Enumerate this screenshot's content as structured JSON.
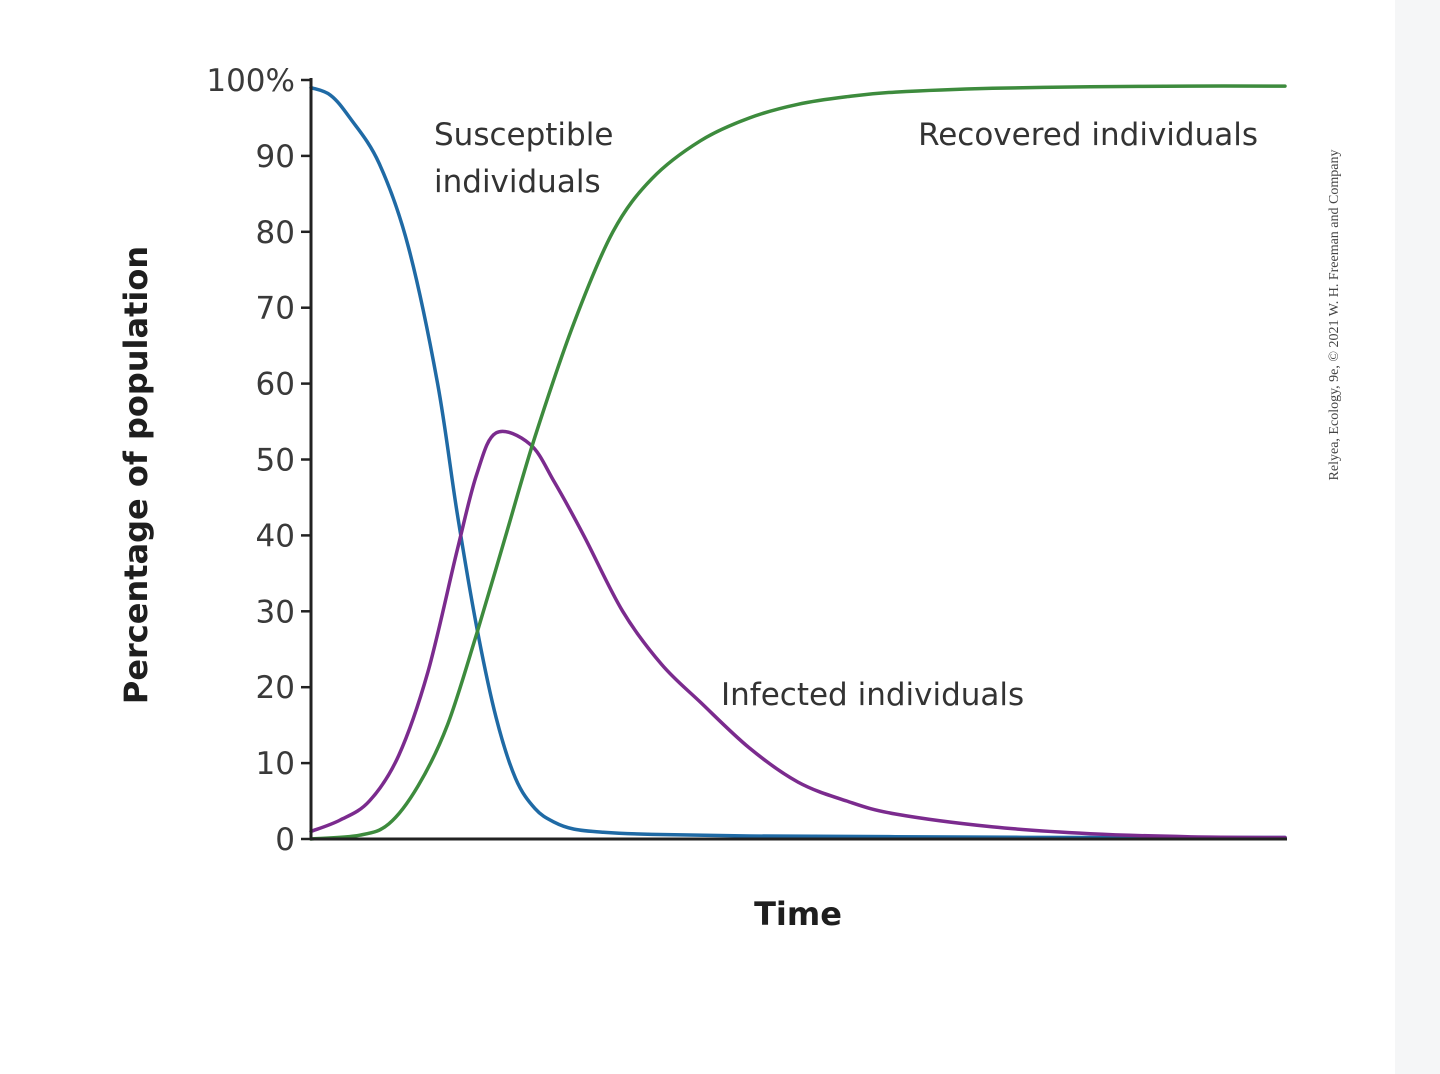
{
  "chart_data": {
    "type": "line",
    "xlabel": "Time",
    "ylabel": "Percentage of population",
    "ylim": [
      0,
      100
    ],
    "y_ticks": [
      "0",
      "10",
      "20",
      "30",
      "40",
      "50",
      "60",
      "70",
      "80",
      "90",
      "100%"
    ],
    "x_ticks": [],
    "grid": false,
    "legend": "none (series labeled directly on the plot)",
    "series": [
      {
        "name": "Susceptible individuals",
        "label_lines": [
          "Susceptible",
          "individuals"
        ],
        "color": "#1f6aa5",
        "x": [
          0,
          2,
          4,
          7,
          10,
          13,
          15,
          17,
          19,
          21,
          23,
          25,
          27,
          30,
          35,
          45,
          60,
          80,
          100
        ],
        "y": [
          99,
          98,
          95,
          89,
          78,
          60,
          43,
          28,
          16,
          8,
          4,
          2.2,
          1.3,
          0.9,
          0.6,
          0.4,
          0.3,
          0.2,
          0.2
        ]
      },
      {
        "name": "Infected individuals",
        "label_lines": [
          "Infected individuals"
        ],
        "color": "#7b2b8e",
        "x": [
          0,
          3,
          6,
          9,
          12,
          15,
          17,
          19,
          22.5,
          25,
          28,
          32,
          36,
          40,
          45,
          50,
          55,
          60,
          70,
          80,
          90,
          100
        ],
        "y": [
          1,
          2.5,
          5,
          11,
          22,
          38,
          48,
          53.5,
          52,
          47,
          40,
          30,
          23,
          18,
          12,
          7.5,
          5,
          3.3,
          1.6,
          0.7,
          0.3,
          0.2
        ]
      },
      {
        "name": "Recovered individuals",
        "label_lines": [
          "Recovered individuals"
        ],
        "color": "#3d8b3d",
        "x": [
          0,
          5,
          8,
          11,
          14,
          17,
          20,
          23,
          27,
          31,
          35,
          40,
          45,
          50,
          55,
          60,
          70,
          80,
          90,
          100
        ],
        "y": [
          0,
          0.5,
          2,
          7,
          15,
          27,
          40,
          53,
          68,
          80,
          87,
          92,
          95,
          96.8,
          97.8,
          98.4,
          98.9,
          99.1,
          99.2,
          99.2
        ]
      }
    ]
  },
  "credit": "Relyea, Ecology, 9e, © 2021 W. H. Freeman and Company"
}
